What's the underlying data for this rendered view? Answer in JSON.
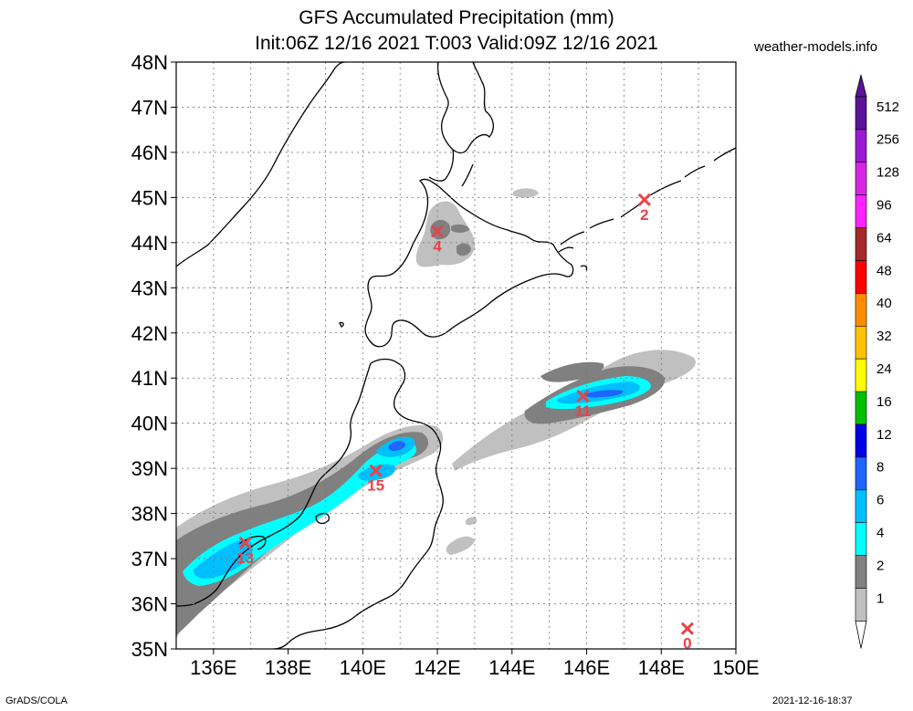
{
  "title_line1": "GFS Accumulated Precipitation (mm)",
  "title_line2": "Init:06Z 12/16 2021 T:003 Valid:09Z 12/16 2021",
  "site": "weather-models.info",
  "footer_left": "GrADS/COLA",
  "footer_right": "2021-12-16-18:37",
  "lat_labels": [
    "48N",
    "47N",
    "46N",
    "45N",
    "44N",
    "43N",
    "42N",
    "41N",
    "40N",
    "39N",
    "38N",
    "37N",
    "36N",
    "35N"
  ],
  "lon_labels": [
    "136E",
    "138E",
    "140E",
    "142E",
    "144E",
    "146E",
    "148E",
    "150E"
  ],
  "map_extent": {
    "lon": [
      135,
      150
    ],
    "lat": [
      35,
      48
    ]
  },
  "colorbar": {
    "levels": [
      "512",
      "256",
      "128",
      "96",
      "64",
      "48",
      "40",
      "32",
      "24",
      "16",
      "12",
      "8",
      "6",
      "4",
      "2",
      "1"
    ],
    "colors": [
      "#5a1399",
      "#9a19d2",
      "#d826e4",
      "#ff22ff",
      "#a52a2a",
      "#ff0000",
      "#ff8c00",
      "#ffc200",
      "#ffff00",
      "#00c000",
      "#0000e6",
      "#1e64ff",
      "#00bfff",
      "#00ffff",
      "#808080",
      "#c0c0c0"
    ],
    "top_color": "#5a1399",
    "bottom_color": "#ffffff"
  },
  "station_points": [
    {
      "lon": 142.0,
      "lat": 44.25,
      "value": "4"
    },
    {
      "lon": 147.55,
      "lat": 44.95,
      "value": "2"
    },
    {
      "lon": 145.9,
      "lat": 40.6,
      "value": "11"
    },
    {
      "lon": 140.35,
      "lat": 38.95,
      "value": "15"
    },
    {
      "lon": 136.85,
      "lat": 37.35,
      "value": "13"
    },
    {
      "lon": 148.7,
      "lat": 35.45,
      "value": "0"
    }
  ]
}
